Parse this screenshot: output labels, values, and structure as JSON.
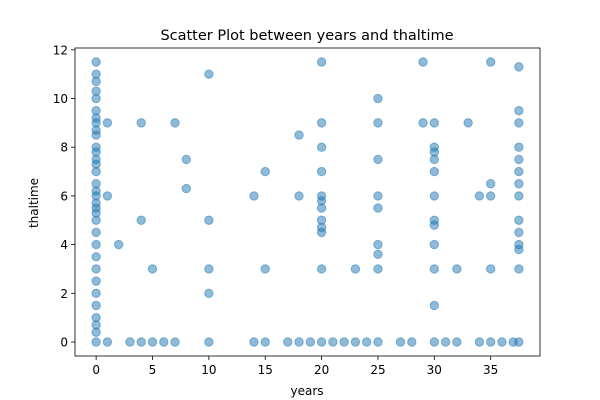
{
  "chart_data": {
    "type": "scatter",
    "title": "Scatter Plot between years and thaltime",
    "xlabel": "years",
    "ylabel": "thaltime",
    "xlim": [
      -1.875,
      39.375
    ],
    "ylim": [
      -0.575,
      12.075
    ],
    "xticks": [
      0,
      5,
      10,
      15,
      20,
      25,
      30,
      35
    ],
    "yticks": [
      0,
      2,
      4,
      6,
      8,
      10,
      12
    ],
    "grid": false,
    "color": "#1f77b4",
    "points": [
      [
        0,
        0
      ],
      [
        0,
        0.4
      ],
      [
        0,
        0.7
      ],
      [
        0,
        1
      ],
      [
        0,
        1.5
      ],
      [
        0,
        2
      ],
      [
        0,
        2.5
      ],
      [
        0,
        3
      ],
      [
        0,
        3.5
      ],
      [
        0,
        4
      ],
      [
        0,
        4.5
      ],
      [
        0,
        5
      ],
      [
        0,
        5.3
      ],
      [
        0,
        5.5
      ],
      [
        0,
        5.7
      ],
      [
        0,
        6
      ],
      [
        0,
        6.2
      ],
      [
        0,
        6.5
      ],
      [
        0,
        7
      ],
      [
        0,
        7.3
      ],
      [
        0,
        7.5
      ],
      [
        0,
        7.8
      ],
      [
        0,
        8
      ],
      [
        0,
        8.5
      ],
      [
        0,
        8.7
      ],
      [
        0,
        9
      ],
      [
        0,
        9.2
      ],
      [
        0,
        9.5
      ],
      [
        0,
        10
      ],
      [
        0,
        10.3
      ],
      [
        0,
        10.7
      ],
      [
        0,
        11
      ],
      [
        0,
        11.5
      ],
      [
        1,
        0
      ],
      [
        1,
        6
      ],
      [
        1,
        9
      ],
      [
        2,
        4
      ],
      [
        3,
        0
      ],
      [
        4,
        0
      ],
      [
        4,
        5
      ],
      [
        4,
        9
      ],
      [
        5,
        0
      ],
      [
        5,
        3
      ],
      [
        6,
        0
      ],
      [
        7,
        0
      ],
      [
        7,
        9
      ],
      [
        8,
        6.3
      ],
      [
        8,
        7.5
      ],
      [
        10,
        0
      ],
      [
        10,
        2
      ],
      [
        10,
        3
      ],
      [
        10,
        5
      ],
      [
        10,
        11
      ],
      [
        14,
        0
      ],
      [
        14,
        6
      ],
      [
        15,
        0
      ],
      [
        15,
        3
      ],
      [
        15,
        7
      ],
      [
        17,
        0
      ],
      [
        18,
        0
      ],
      [
        18,
        6
      ],
      [
        18,
        8.5
      ],
      [
        19,
        0
      ],
      [
        20,
        0
      ],
      [
        20,
        3
      ],
      [
        20,
        4.5
      ],
      [
        20,
        4.7
      ],
      [
        20,
        5
      ],
      [
        20,
        5.5
      ],
      [
        20,
        5.8
      ],
      [
        20,
        6
      ],
      [
        20,
        7
      ],
      [
        20,
        8
      ],
      [
        20,
        9
      ],
      [
        20,
        11.5
      ],
      [
        21,
        0
      ],
      [
        22,
        0
      ],
      [
        23,
        0
      ],
      [
        23,
        3
      ],
      [
        24,
        0
      ],
      [
        25,
        0
      ],
      [
        25,
        3
      ],
      [
        25,
        3.6
      ],
      [
        25,
        4
      ],
      [
        25,
        5.5
      ],
      [
        25,
        6
      ],
      [
        25,
        7.5
      ],
      [
        25,
        9
      ],
      [
        25,
        10
      ],
      [
        27,
        0
      ],
      [
        28,
        0
      ],
      [
        29,
        9
      ],
      [
        29,
        11.5
      ],
      [
        30,
        0
      ],
      [
        30,
        1.5
      ],
      [
        30,
        3
      ],
      [
        30,
        4
      ],
      [
        30,
        4.8
      ],
      [
        30,
        5
      ],
      [
        30,
        6
      ],
      [
        30,
        7
      ],
      [
        30,
        7.5
      ],
      [
        30,
        7.8
      ],
      [
        30,
        8
      ],
      [
        30,
        9
      ],
      [
        31,
        0
      ],
      [
        32,
        0
      ],
      [
        32,
        3
      ],
      [
        33,
        9
      ],
      [
        34,
        0
      ],
      [
        34,
        6
      ],
      [
        35,
        0
      ],
      [
        35,
        3
      ],
      [
        35,
        6
      ],
      [
        35,
        6.5
      ],
      [
        35,
        11.5
      ],
      [
        36,
        0
      ],
      [
        37,
        0
      ],
      [
        37.5,
        0
      ],
      [
        37.5,
        3
      ],
      [
        37.5,
        3.8
      ],
      [
        37.5,
        4
      ],
      [
        37.5,
        4.5
      ],
      [
        37.5,
        5
      ],
      [
        37.5,
        6
      ],
      [
        37.5,
        6.5
      ],
      [
        37.5,
        7
      ],
      [
        37.5,
        7.5
      ],
      [
        37.5,
        8
      ],
      [
        37.5,
        9
      ],
      [
        37.5,
        9.5
      ],
      [
        37.5,
        11.3
      ]
    ]
  }
}
